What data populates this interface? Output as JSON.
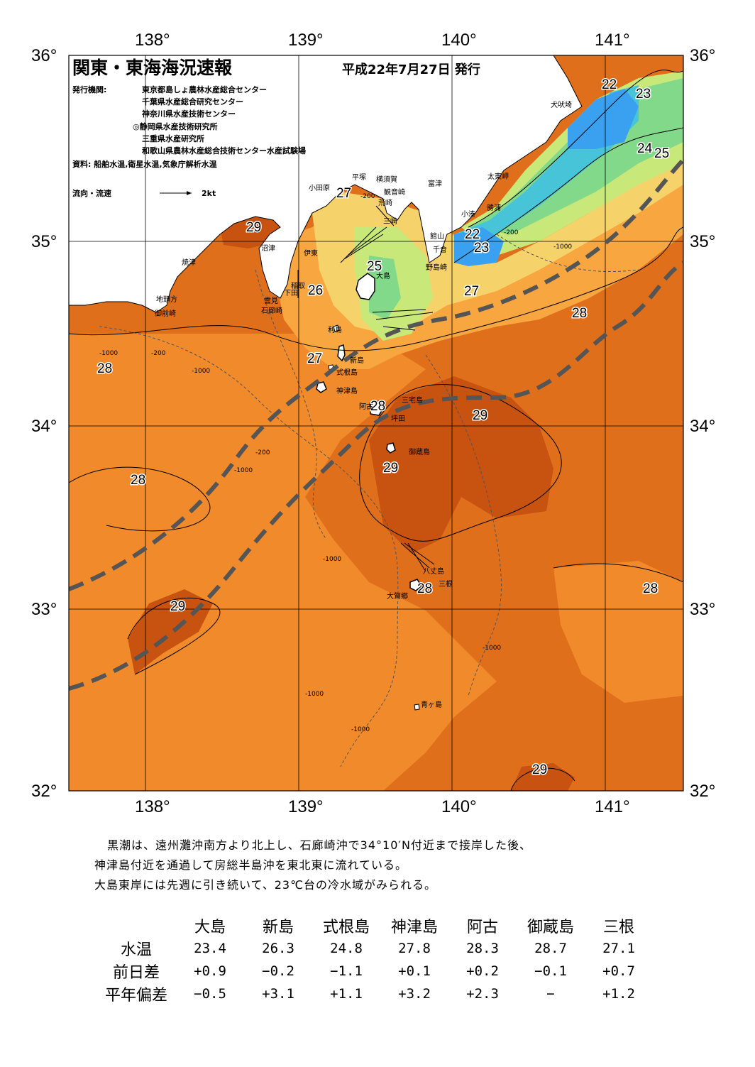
{
  "title": "関東・東海海況速報",
  "issue_date": "平成22年7月27日 発行",
  "issuers_label": "発行機関:",
  "issuers": [
    "東京都島しょ農林水産総合センター",
    "千葉県水産総合研究センター",
    "神奈川県水産技術センター",
    "◎静岡県水産技術研究所",
    "三重県水産研究所",
    "和歌山県農林水産総合技術センター水産試験場"
  ],
  "sources": "資料: 船舶水温,衛星水温,気象庁解析水温",
  "legend": {
    "label": "流向・流速",
    "scale": "2kt"
  },
  "axes": {
    "lon_labels": [
      "138°",
      "139°",
      "140°",
      "141°"
    ],
    "lat_labels": [
      "36°",
      "35°",
      "34°",
      "33°",
      "32°"
    ]
  },
  "temperature_labels": [
    "22",
    "23",
    "24",
    "25",
    "22",
    "23",
    "27",
    "29",
    "25",
    "26",
    "27",
    "28",
    "28",
    "27",
    "28",
    "29",
    "29",
    "28",
    "28",
    "28",
    "29",
    "29"
  ],
  "depth_labels": [
    "-200",
    "-1000"
  ],
  "places": [
    "犬吠埼",
    "太東岬",
    "勝浦",
    "小湊",
    "富津",
    "横須賀",
    "平塚",
    "観音崎",
    "荒崎",
    "三崎",
    "小田原",
    "館山",
    "千倉",
    "野島崎",
    "大島",
    "沼津",
    "伊東",
    "焼津",
    "稲取",
    "下田",
    "雲見",
    "石廊崎",
    "地頭方",
    "御前崎",
    "利島",
    "新島",
    "式根島",
    "神津島",
    "三宅島",
    "阿古",
    "坪田",
    "御蔵島",
    "八丈島",
    "三根",
    "大賀郷",
    "青ヶ島"
  ],
  "description": [
    "黒潮は、遠州灘沖南方より北上し、石廊崎沖で34°10′N付近まで接岸した後、",
    "神津島付近を通過して房総半島沖を東北東に流れている。",
    "大島東岸には先週に引き続いて、23℃台の冷水域がみられる。"
  ],
  "table": {
    "columns": [
      "大島",
      "新島",
      "式根島",
      "神津島",
      "阿古",
      "御蔵島",
      "三根"
    ],
    "rows": [
      {
        "label": "水温",
        "values": [
          "23.4",
          "26.3",
          "24.8",
          "27.8",
          "28.3",
          "28.7",
          "27.1"
        ]
      },
      {
        "label": "前日差",
        "values": [
          "+0.9",
          "−0.2",
          "−1.1",
          "+0.1",
          "+0.2",
          "−0.1",
          "+0.7"
        ]
      },
      {
        "label": "平年偏差",
        "values": [
          "−0.5",
          "+3.1",
          "+1.1",
          "+3.2",
          "+2.3",
          "−",
          "+1.2"
        ]
      }
    ]
  },
  "colors": {
    "warm29": "#c85210",
    "warm28": "#e06f1c",
    "warm27": "#f08a2a",
    "warm26": "#f7a640",
    "warm25": "#f6d36a",
    "cool24": "#c9e87a",
    "cool23": "#82d98a",
    "cool22": "#47c4d8",
    "cold21": "#3aa0f0",
    "kuroshio_axis": "#555555"
  }
}
